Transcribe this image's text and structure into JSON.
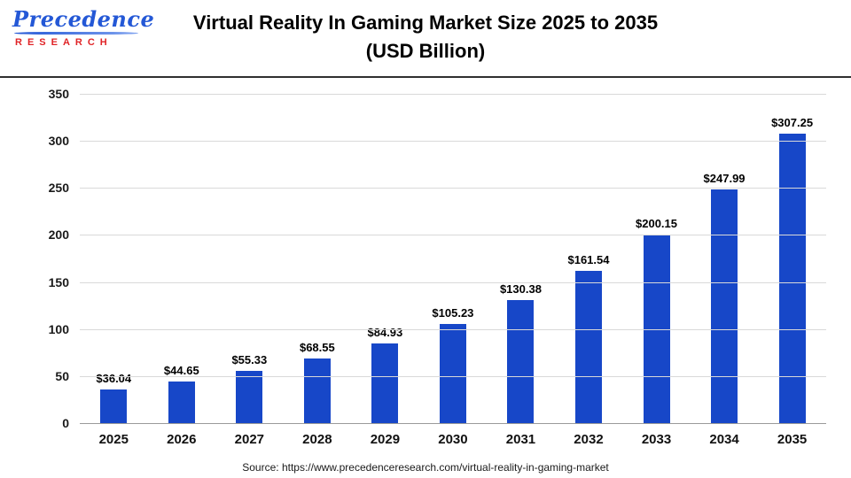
{
  "logo": {
    "name": "Precedence",
    "subtitle": "RESEARCH"
  },
  "header": {
    "title_line1": "Virtual Reality In Gaming Market Size 2025 to 2035",
    "title_line2": "(USD Billion)"
  },
  "chart_data": {
    "type": "bar",
    "title": "Virtual Reality In Gaming Market Size 2025 to 2035 (USD Billion)",
    "categories": [
      "2025",
      "2026",
      "2027",
      "2028",
      "2029",
      "2030",
      "2031",
      "2032",
      "2033",
      "2034",
      "2035"
    ],
    "values": [
      36.04,
      44.65,
      55.33,
      68.55,
      84.93,
      105.23,
      130.38,
      161.54,
      200.15,
      247.99,
      307.25
    ],
    "value_labels": [
      "$36.04",
      "$44.65",
      "$55.33",
      "$68.55",
      "$84.93",
      "$105.23",
      "$130.38",
      "$161.54",
      "$200.15",
      "$247.99",
      "$307.25"
    ],
    "xlabel": "",
    "ylabel": "",
    "ylim": [
      0,
      350
    ],
    "y_ticks": [
      0,
      50,
      100,
      150,
      200,
      250,
      300,
      350
    ],
    "grid": "horizontal",
    "legend": "none",
    "bar_color": "#1747c8"
  },
  "footer": {
    "source_text": "Source: https://www.precedenceresearch.com/virtual-reality-in-gaming-market"
  }
}
